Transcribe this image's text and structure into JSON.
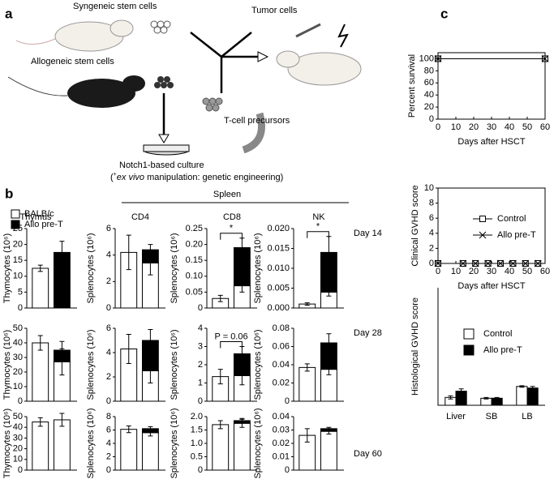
{
  "panel_labels": [
    "a",
    "b",
    "c"
  ],
  "diagram": {
    "syngeneic": "Syngeneic stem cells",
    "allogeneic": "Allogeneic stem cells",
    "tumor": "Tumor cells",
    "precursors": "T-cell precursors",
    "culture": "Notch1-based culture",
    "manipulation": {
      "open": "(",
      "sup": "+",
      "italic": "ex vivo",
      "rest": " manipulation: genetic engineering)"
    }
  },
  "panel_b": {
    "legend": [
      {
        "name": "BALB/c",
        "color": "#ffffff"
      },
      {
        "name": "Allo pre-T",
        "color": "#000000"
      }
    ],
    "spleen": "Spleen",
    "columns": [
      "Thymus",
      "CD4",
      "CD8",
      "NK"
    ],
    "days": [
      "Day 14",
      "Day 28",
      "Day 60"
    ]
  },
  "chart_data": [
    {
      "type": "bar",
      "stacked": true,
      "ylabel": "Thymocytes (10⁶)",
      "categories": [
        null,
        null
      ],
      "ylim": [
        0,
        25
      ],
      "yticks": [
        0,
        5,
        10,
        15,
        20,
        25
      ],
      "series": [
        {
          "color": "#ffffff",
          "values": [
            12.5,
            null
          ],
          "errors": [
            1,
            null
          ]
        },
        {
          "color": "#000000",
          "values": [
            null,
            17.5
          ],
          "errors": [
            null,
            3.5
          ]
        }
      ]
    },
    {
      "type": "bar",
      "stacked": true,
      "ylabel": "Splenocytes (10⁶)",
      "categories": [
        null,
        null
      ],
      "ylim": [
        0,
        6
      ],
      "yticks": [
        0,
        2,
        4,
        6
      ],
      "series": [
        {
          "color": "#ffffff",
          "values": [
            4.2,
            3.4
          ],
          "errors": [
            1.3,
            0.9
          ]
        },
        {
          "color": "#000000",
          "values": [
            null,
            1.0
          ],
          "errors": [
            null,
            0.4
          ]
        }
      ]
    },
    {
      "type": "bar",
      "stacked": true,
      "ylabel": "Splenocytes (10⁶)",
      "categories": [
        null,
        null
      ],
      "ylim": [
        0,
        0.25
      ],
      "yticks": [
        0,
        0.05,
        {
          "value": 0.1,
          "label": "0.10"
        },
        0.15,
        {
          "value": 0.2,
          "label": "0.20"
        },
        0.25
      ],
      "annotation": "*",
      "series": [
        {
          "color": "#ffffff",
          "values": [
            0.03,
            0.07
          ],
          "errors": [
            0.01,
            0.02
          ]
        },
        {
          "color": "#000000",
          "values": [
            null,
            0.12
          ],
          "errors": [
            null,
            0.03
          ]
        }
      ]
    },
    {
      "type": "bar",
      "stacked": true,
      "ylabel": "Splenocytes (10⁶)",
      "categories": [
        null,
        null
      ],
      "ylim": [
        0,
        0.02
      ],
      "yticks": [
        {
          "value": 0,
          "label": "0.000"
        },
        {
          "value": 0.005,
          "label": "0.005"
        },
        {
          "value": 0.01,
          "label": "0.010"
        },
        {
          "value": 0.015,
          "label": "0.015"
        },
        {
          "value": 0.02,
          "label": "0.020"
        }
      ],
      "annotation": "*",
      "series": [
        {
          "color": "#ffffff",
          "values": [
            0.001,
            0.004
          ],
          "errors": [
            0.0003,
            0.001
          ]
        },
        {
          "color": "#000000",
          "values": [
            null,
            0.01
          ],
          "errors": [
            null,
            0.004
          ]
        }
      ]
    },
    {
      "type": "bar",
      "stacked": true,
      "ylabel": "Thymocytes (10⁶)",
      "categories": [
        null,
        null
      ],
      "ylim": [
        0,
        50
      ],
      "yticks": [
        0,
        10,
        20,
        30,
        40,
        50
      ],
      "series": [
        {
          "color": "#ffffff",
          "values": [
            40,
            27
          ],
          "errors": [
            5,
            9
          ]
        },
        {
          "color": "#000000",
          "values": [
            null,
            8
          ],
          "errors": [
            null,
            6
          ]
        }
      ]
    },
    {
      "type": "bar",
      "stacked": true,
      "ylabel": "Splenocytes (10⁶)",
      "categories": [
        null,
        null
      ],
      "ylim": [
        0,
        6
      ],
      "yticks": [
        0,
        2,
        4,
        6
      ],
      "series": [
        {
          "color": "#ffffff",
          "values": [
            4.3,
            2.5
          ],
          "errors": [
            1.2,
            1.0
          ]
        },
        {
          "color": "#000000",
          "values": [
            null,
            2.5
          ],
          "errors": [
            null,
            0.9
          ]
        }
      ]
    },
    {
      "type": "bar",
      "stacked": true,
      "ylabel": "Splenocytes (10⁶)",
      "categories": [
        null,
        null
      ],
      "ylim": [
        0,
        4
      ],
      "yticks": [
        0,
        1,
        2,
        3,
        4
      ],
      "annotation": "P = 0.06",
      "series": [
        {
          "color": "#ffffff",
          "values": [
            1.35,
            1.4
          ],
          "errors": [
            0.4,
            0.5
          ]
        },
        {
          "color": "#000000",
          "values": [
            null,
            1.2
          ],
          "errors": [
            null,
            0.4
          ]
        }
      ]
    },
    {
      "type": "bar",
      "stacked": true,
      "ylabel": "Splenocytes (10⁶)",
      "categories": [
        null,
        null
      ],
      "ylim": [
        0,
        0.08
      ],
      "yticks": [
        0,
        0.02,
        0.04,
        0.06,
        0.08
      ],
      "series": [
        {
          "color": "#ffffff",
          "values": [
            0.037,
            0.035
          ],
          "errors": [
            0.004,
            0.006
          ]
        },
        {
          "color": "#000000",
          "values": [
            null,
            0.029
          ],
          "errors": [
            null,
            0.01
          ]
        }
      ]
    },
    {
      "type": "bar",
      "stacked": true,
      "ylabel": "Thymocytes (10⁶)",
      "categories": [
        null,
        null
      ],
      "ylim": [
        0,
        50
      ],
      "yticks": [
        0,
        10,
        20,
        30,
        40,
        50
      ],
      "series": [
        {
          "color": "#ffffff",
          "values": [
            45,
            47
          ],
          "errors": [
            4,
            6
          ]
        },
        {
          "color": "#000000",
          "values": [
            null,
            null
          ],
          "errors": [
            null,
            null
          ]
        }
      ]
    },
    {
      "type": "bar",
      "stacked": true,
      "ylabel": "Splenocytes (10⁶)",
      "categories": [
        null,
        null
      ],
      "ylim": [
        0,
        8
      ],
      "yticks": [
        0,
        2,
        4,
        6,
        8
      ],
      "series": [
        {
          "color": "#ffffff",
          "values": [
            6.1,
            5.6
          ],
          "errors": [
            0.5,
            0.5
          ]
        },
        {
          "color": "#000000",
          "values": [
            null,
            0.6
          ],
          "errors": [
            null,
            0.3
          ]
        }
      ]
    },
    {
      "type": "bar",
      "stacked": true,
      "ylabel": "Splenocytes (10⁶)",
      "categories": [
        null,
        null
      ],
      "ylim": [
        0,
        2
      ],
      "yticks": [
        0,
        0.5,
        {
          "value": 1,
          "label": "1.0"
        },
        1.5,
        {
          "value": 2,
          "label": "2.0"
        }
      ],
      "series": [
        {
          "color": "#ffffff",
          "values": [
            1.7,
            1.75
          ],
          "errors": [
            0.15,
            0.15
          ]
        },
        {
          "color": "#000000",
          "values": [
            null,
            0.1
          ],
          "errors": [
            null,
            0.08
          ]
        }
      ]
    },
    {
      "type": "bar",
      "stacked": true,
      "ylabel": "Splenocytes (10⁶)",
      "categories": [
        null,
        null
      ],
      "ylim": [
        0,
        0.04
      ],
      "yticks": [
        0,
        0.01,
        0.02,
        0.03,
        0.04
      ],
      "series": [
        {
          "color": "#ffffff",
          "values": [
            0.026,
            0.029
          ],
          "errors": [
            0.005,
            0.002
          ]
        },
        {
          "color": "#000000",
          "values": [
            null,
            0.002
          ],
          "errors": [
            null,
            0.001
          ]
        }
      ]
    },
    {
      "type": "line",
      "ylabel": "Percent survival",
      "xlabel": "Days after HSCT",
      "x": [
        0,
        60
      ],
      "xlim": [
        0,
        60
      ],
      "xticks": [
        0,
        10,
        20,
        30,
        40,
        50,
        60
      ],
      "ylim": [
        0,
        110
      ],
      "yticks": [
        0,
        20,
        40,
        60,
        80,
        100
      ],
      "series": [
        {
          "marker": "square",
          "values": [
            100,
            100
          ]
        },
        {
          "marker": "x",
          "values": [
            100,
            100
          ]
        }
      ]
    },
    {
      "type": "line",
      "ylabel": "Clinical GVHD score",
      "xlabel": "Days after HSCT",
      "x": [
        0,
        14,
        21,
        28,
        35,
        42,
        49,
        56
      ],
      "xlim": [
        0,
        60
      ],
      "xticks": [
        0,
        10,
        20,
        30,
        40,
        50,
        60
      ],
      "ylim": [
        0,
        10
      ],
      "yticks": [
        0,
        2,
        4,
        6,
        8,
        10
      ],
      "series": [
        {
          "name": "Control",
          "marker": "square",
          "values": [
            0,
            0,
            0,
            0,
            0,
            0,
            0,
            0
          ]
        },
        {
          "name": "Allo pre-T",
          "marker": "x",
          "values": [
            0,
            0,
            0,
            0,
            0,
            0,
            0,
            0
          ]
        }
      ]
    },
    {
      "type": "bar",
      "stacked": false,
      "ylabel": "Histological GVHD score",
      "categories": [
        "Liver",
        "SB",
        "LB"
      ],
      "ylim": [
        0,
        15
      ],
      "series": [
        {
          "name": "Control",
          "color": "#ffffff",
          "values": [
            1.0,
            0.9,
            2.4
          ],
          "errors": [
            0.2,
            0.1,
            0.1
          ]
        },
        {
          "name": "Allo pre-T",
          "color": "#000000",
          "values": [
            1.8,
            0.9,
            2.2
          ],
          "errors": [
            0.3,
            0.1,
            0.2
          ]
        }
      ]
    }
  ]
}
